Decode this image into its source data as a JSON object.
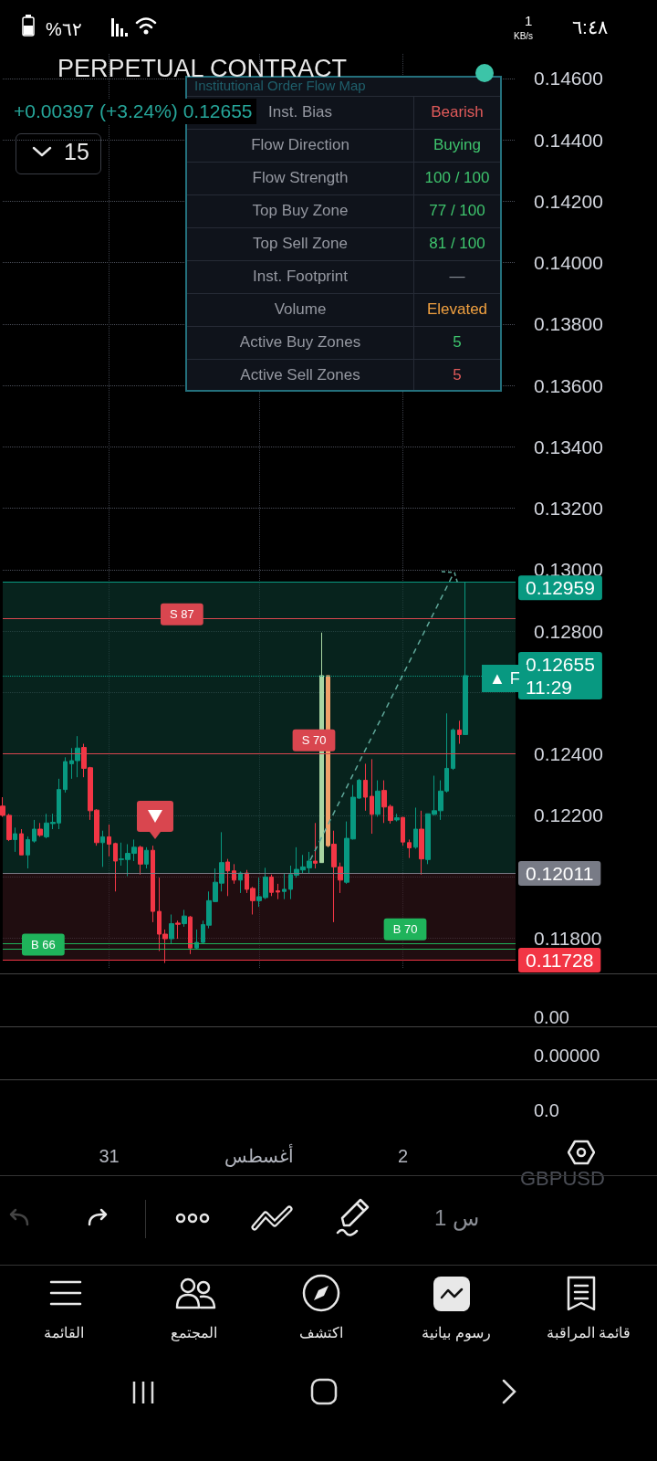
{
  "chart_data": [
    {
      "type": "candlestick",
      "title": "PERPETUAL CONTRACT",
      "subtitle": "+0.00397 (+3.24%)  0.12655",
      "categories": [
        null,
        null,
        null,
        null,
        null,
        null,
        null,
        null,
        null,
        null,
        null,
        null,
        null,
        null,
        null,
        null,
        null,
        "31",
        null,
        null,
        null,
        null,
        null,
        null,
        null,
        null,
        null,
        null,
        null,
        null,
        null,
        null,
        null,
        null,
        null,
        null,
        null,
        null,
        null,
        null,
        null,
        "أغسطس",
        null,
        null,
        null,
        null,
        null,
        null,
        null,
        null,
        null,
        null,
        null,
        null,
        null,
        null,
        null,
        null,
        null,
        null,
        null,
        null,
        null,
        null,
        "2",
        null,
        null,
        null,
        null,
        null,
        null,
        null,
        null,
        null,
        null,
        null,
        null,
        null,
        null,
        null,
        null,
        null,
        null
      ],
      "ohlc": [
        [
          0.1223,
          0.12259,
          0.12195,
          0.122
        ],
        [
          0.122,
          0.12205,
          0.12116,
          0.12121
        ],
        [
          0.12121,
          0.1216,
          0.12081,
          0.1214
        ],
        [
          0.1214,
          0.12155,
          0.12071,
          0.12071
        ],
        [
          0.12071,
          0.12131,
          0.12027,
          0.12121
        ],
        [
          0.12116,
          0.12185,
          0.12111,
          0.12155
        ],
        [
          0.12155,
          0.12175,
          0.1213,
          0.12135
        ],
        [
          0.1213,
          0.12205,
          0.12125,
          0.12175
        ],
        [
          0.12173,
          0.12205,
          0.12155,
          0.12177
        ],
        [
          0.12175,
          0.12319,
          0.12155,
          0.12284
        ],
        [
          0.12284,
          0.12389,
          0.12274,
          0.12375
        ],
        [
          0.12368,
          0.12419,
          0.12319,
          0.12378
        ],
        [
          0.12378,
          0.12458,
          0.12324,
          0.12419
        ],
        [
          0.12421,
          0.12433,
          0.12324,
          0.12353
        ],
        [
          0.12355,
          0.12358,
          0.12185,
          0.12215
        ],
        [
          0.12217,
          0.1222,
          0.12101,
          0.12111
        ],
        [
          0.12111,
          0.1215,
          0.12032,
          0.1213
        ],
        [
          0.1213,
          0.1217,
          0.12066,
          0.12106
        ],
        [
          0.12108,
          0.12111,
          0.11952,
          0.12051
        ],
        [
          0.12056,
          0.12111,
          0.12036,
          0.12058
        ],
        [
          0.12056,
          0.12106,
          0.12002,
          0.12076
        ],
        [
          0.12076,
          0.12121,
          0.12051,
          0.12096
        ],
        [
          0.12096,
          0.12101,
          0.12007,
          0.12041
        ],
        [
          0.12041,
          0.12096,
          0.12027,
          0.12086
        ],
        [
          0.12086,
          0.12101,
          0.11852,
          0.11887
        ],
        [
          0.11887,
          0.11997,
          0.11758,
          0.11813
        ],
        [
          0.11813,
          0.11828,
          0.11719,
          0.11798
        ],
        [
          0.11798,
          0.11877,
          0.11783,
          0.11847
        ],
        [
          0.11849,
          0.11857,
          0.11798,
          0.11845
        ],
        [
          0.11847,
          0.11892,
          0.11837,
          0.11872
        ],
        [
          0.11869,
          0.11872,
          0.11748,
          0.11768
        ],
        [
          0.11768,
          0.11828,
          0.11763,
          0.11786
        ],
        [
          0.11786,
          0.11857,
          0.11783,
          0.11844
        ],
        [
          0.11842,
          0.11952,
          0.11832,
          0.11922
        ],
        [
          0.11919,
          0.12027,
          0.11917,
          0.11982
        ],
        [
          0.11979,
          0.12145,
          0.11952,
          0.12046
        ],
        [
          0.12048,
          0.12058,
          0.11937,
          0.12019
        ],
        [
          0.12019,
          0.12041,
          0.11977,
          0.11989
        ],
        [
          0.11989,
          0.12017,
          0.11947,
          0.12012
        ],
        [
          0.12012,
          0.12022,
          0.11947,
          0.11959
        ],
        [
          0.11962,
          0.11967,
          0.11877,
          0.11922
        ],
        [
          0.11922,
          0.11997,
          0.11902,
          0.11935
        ],
        [
          0.11932,
          0.12029,
          0.11927,
          0.11999
        ],
        [
          0.11999,
          0.12007,
          0.11937,
          0.11949
        ],
        [
          0.11954,
          0.11977,
          0.11927,
          0.1195
        ],
        [
          0.11952,
          0.12012,
          0.11927,
          0.11959
        ],
        [
          0.11959,
          0.12036,
          0.11927,
          0.12007
        ],
        [
          0.12005,
          0.12096,
          0.11997,
          0.12024
        ],
        [
          0.12022,
          0.12071,
          0.12012,
          0.12032
        ],
        [
          0.12029,
          0.12081,
          0.12012,
          0.12051
        ],
        [
          0.12051,
          0.12175,
          0.12027,
          0.12044
        ],
        [
          0.12046,
          0.12795,
          0.12046,
          0.12655
        ],
        [
          0.12655,
          0.12655,
          0.12096,
          0.12101
        ],
        [
          0.12106,
          0.1215,
          0.11852,
          0.12032
        ],
        [
          0.12032,
          0.12046,
          0.11947,
          0.11989
        ],
        [
          0.11982,
          0.1218,
          0.11977,
          0.12125
        ],
        [
          0.12123,
          0.12299,
          0.12121,
          0.12259
        ],
        [
          0.12256,
          0.12319,
          0.12254,
          0.12314
        ],
        [
          0.12314,
          0.12368,
          0.12215,
          0.12259
        ],
        [
          0.12262,
          0.12383,
          0.1214,
          0.12203
        ],
        [
          0.12203,
          0.12314,
          0.12195,
          0.12279
        ],
        [
          0.12281,
          0.12314,
          0.12175,
          0.12227
        ],
        [
          0.12229,
          0.12235,
          0.12173,
          0.12183
        ],
        [
          0.12185,
          0.12205,
          0.1218,
          0.12192
        ],
        [
          0.12193,
          0.12195,
          0.12101,
          0.12113
        ],
        [
          0.12111,
          0.12121,
          0.12061,
          0.12094
        ],
        [
          0.12096,
          0.12225,
          0.12091,
          0.12155
        ],
        [
          0.12155,
          0.12215,
          0.12007,
          0.12058
        ],
        [
          0.12056,
          0.12205,
          0.12041,
          0.12205
        ],
        [
          0.12203,
          0.12329,
          0.122,
          0.12215
        ],
        [
          0.12215,
          0.12314,
          0.12185,
          0.12279
        ],
        [
          0.12279,
          0.12532,
          0.12274,
          0.12353
        ],
        [
          0.12353,
          0.12483,
          0.12348,
          0.12478
        ],
        [
          0.12478,
          0.12508,
          0.12433,
          0.12463
        ],
        [
          0.12463,
          0.12959,
          0.12463,
          0.12655
        ],
        null,
        null,
        null,
        null,
        null,
        null,
        null,
        null
      ],
      "colors": [
        "#f23645",
        "#f23645",
        "#089981",
        "#f23645",
        "#089981",
        "#089981",
        "#f23645",
        "#089981",
        "#089981",
        "#089981",
        "#089981",
        "#089981",
        "#089981",
        "#f23645",
        "#f23645",
        "#f23645",
        "#089981",
        "#f23645",
        "#f23645",
        "#089981",
        "#089981",
        "#089981",
        "#f23645",
        "#089981",
        "#f23645",
        "#f23645",
        "#f23645",
        "#089981",
        "#f23645",
        "#089981",
        "#f23645",
        "#089981",
        "#089981",
        "#089981",
        "#089981",
        "#089981",
        "#f23645",
        "#f23645",
        "#089981",
        "#f23645",
        "#f23645",
        "#089981",
        "#089981",
        "#f23645",
        "#f23645",
        "#089981",
        "#089981",
        "#089981",
        "#089981",
        "#089981",
        "#f23645",
        "#a8d5a2",
        "#f0a06a",
        "#f23645",
        "#f23645",
        "#089981",
        "#089981",
        "#089981",
        "#f23645",
        "#f23645",
        "#089981",
        "#f23645",
        "#f23645",
        "#089981",
        "#f23645",
        "#f23645",
        "#089981",
        "#f23645",
        "#089981",
        "#089981",
        "#089981",
        "#089981",
        "#089981",
        "#f23645",
        "#089981",
        null,
        null,
        null,
        null,
        null,
        null,
        null,
        null
      ],
      "ylim": [
        0.117,
        0.1468
      ],
      "yticks": [
        {
          "value": 0.118,
          "label": "0.11800"
        },
        {
          "value": 0.12,
          "label": null
        },
        {
          "value": 0.122,
          "label": "0.12200"
        },
        {
          "value": 0.124,
          "label": "0.12400"
        },
        {
          "value": 0.126,
          "label": null
        },
        {
          "value": 0.128,
          "label": "0.12800"
        },
        {
          "value": 0.13,
          "label": "0.13000"
        },
        {
          "value": 0.132,
          "label": "0.13200"
        },
        {
          "value": 0.134,
          "label": "0.13400"
        },
        {
          "value": 0.136,
          "label": "0.13600"
        },
        {
          "value": 0.138,
          "label": "0.13800"
        },
        {
          "value": 0.14,
          "label": "0.14000"
        },
        {
          "value": 0.142,
          "label": "0.14200"
        },
        {
          "value": 0.144,
          "label": "0.14400"
        },
        {
          "value": 0.146,
          "label": "0.14600"
        }
      ],
      "grid": true,
      "bands": [
        {
          "axis": "y",
          "from": 0.12011,
          "to": 0.12959,
          "color": "#0c3a30"
        },
        {
          "axis": "y",
          "from": 0.11728,
          "to": 0.12011,
          "color": "#36151a"
        }
      ],
      "ref_lines": [
        {
          "axis": "y",
          "value": 0.12959,
          "label": "0.12959",
          "color": "#089981"
        },
        {
          "axis": "y",
          "value": 0.12655,
          "label": "0.12655\n11:29",
          "color": "#089981",
          "line_style": "dotted"
        },
        {
          "axis": "y",
          "value": 0.12011,
          "label": "0.12011",
          "color": "#787b86"
        },
        {
          "axis": "y",
          "value": 0.11728,
          "label": "0.11728",
          "color": "#f23645"
        },
        {
          "axis": "y",
          "value": 0.1284,
          "label": "S 87",
          "color": "#d9464f"
        },
        {
          "axis": "y",
          "value": 0.124,
          "label": "S 70",
          "color": "#d9464f"
        },
        {
          "axis": "y",
          "value": 0.11764,
          "label": "B 66",
          "color": "#1fb35b"
        },
        {
          "axis": "y",
          "value": 0.11784,
          "label": "B 70",
          "color": "#1fb35b"
        }
      ],
      "annotations": [
        "▲ F"
      ]
    },
    {
      "type": "other",
      "title": "Institutional Order Flow Map",
      "categories": [
        "Inst. Bias",
        "Flow Direction",
        "Flow Strength",
        "Top Buy Zone",
        "Top Sell Zone",
        "Inst. Footprint",
        "Volume",
        "Active Buy Zones",
        "Active Sell Zones"
      ],
      "annotations": [
        "Bearish",
        "Buying",
        "100 / 100",
        "77 / 100",
        "81 / 100",
        "—",
        "Elevated",
        "5",
        "5"
      ],
      "colors": [
        "#e05a5a",
        "#3ec46d",
        "#3ec46d",
        "#3ec46d",
        "#3ec46d",
        "#8a8f98",
        "#f0a040",
        "#3ec46d",
        "#e05a5a"
      ]
    },
    {
      "type": "other",
      "annotations": [
        "%٦٢",
        "1",
        "KB/s",
        "٦:٤٨",
        "15",
        "1 س",
        "GBPUSD",
        "القائمة",
        "المجتمع",
        "اكتشف",
        "رسوم بيانية",
        "قائمة المراقبة",
        "0.00",
        "0.00000",
        "0.0"
      ]
    }
  ]
}
